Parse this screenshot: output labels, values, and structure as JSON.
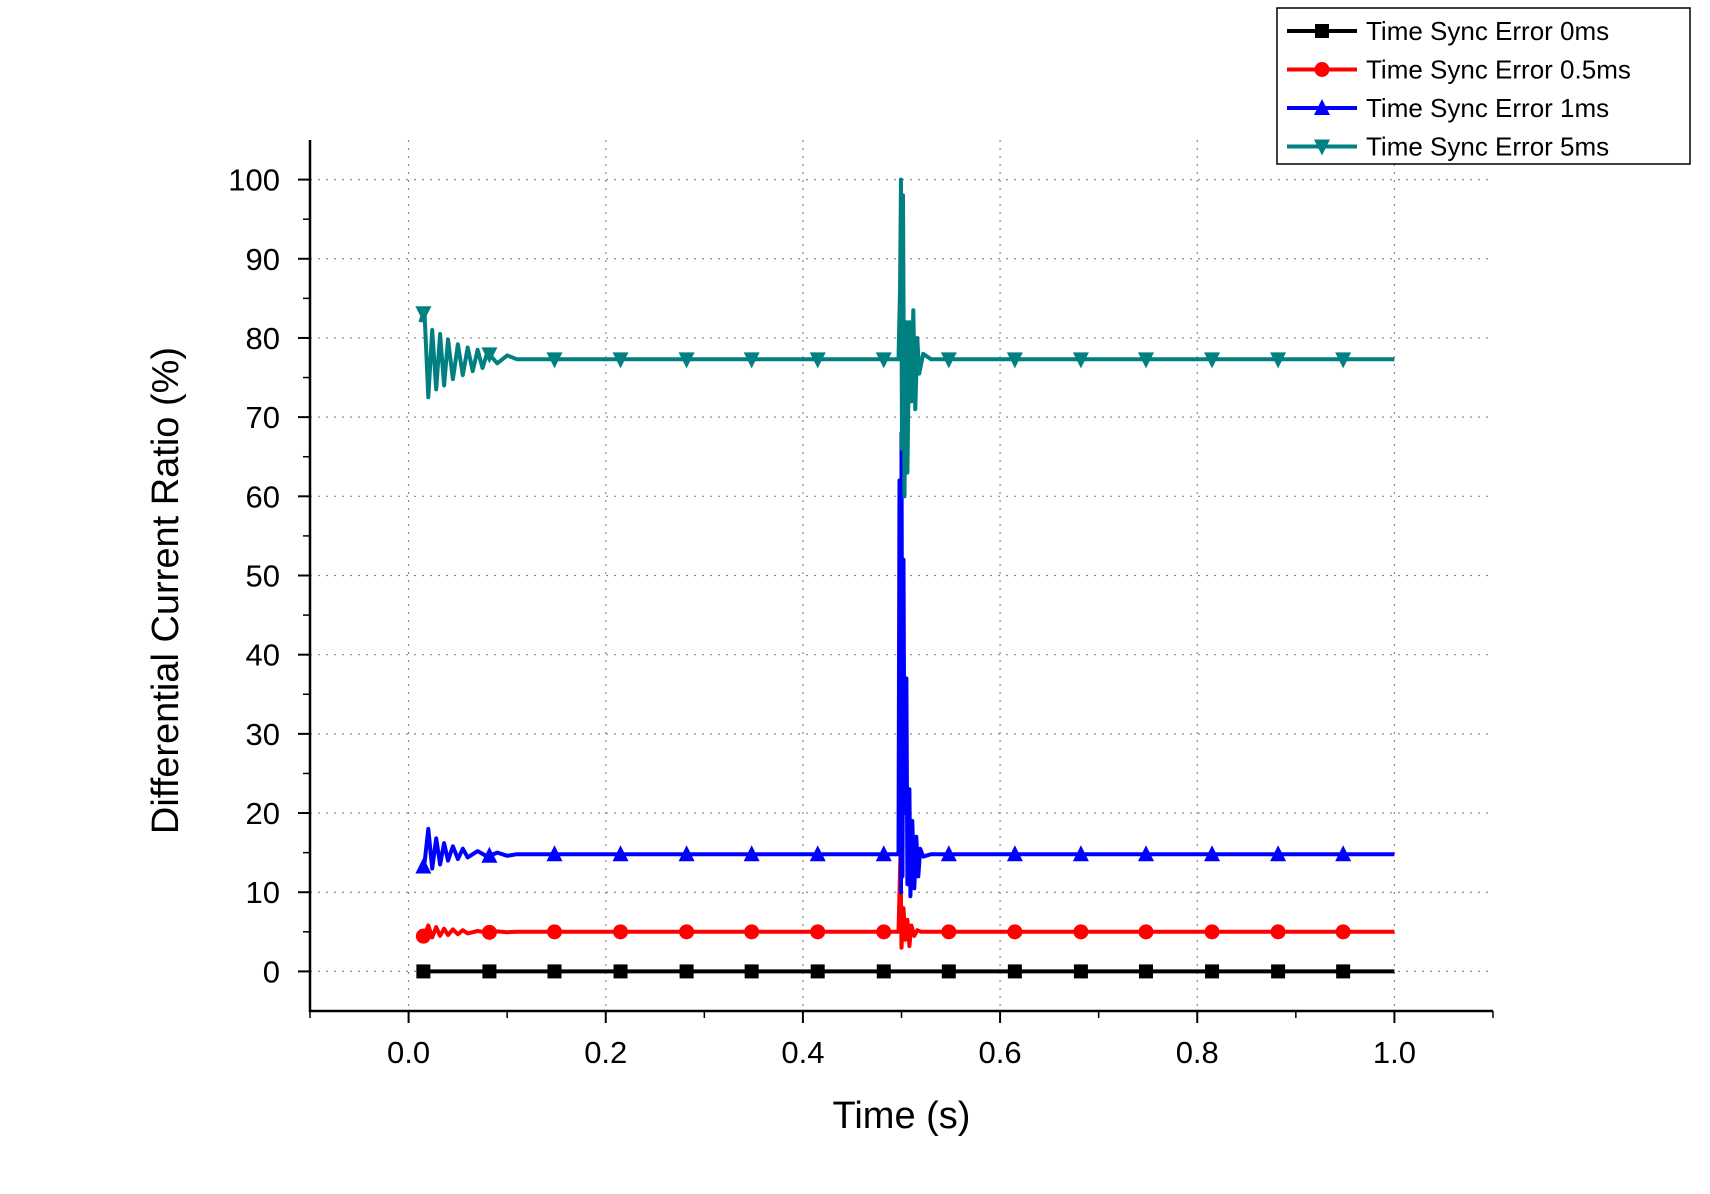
{
  "chart_data": {
    "type": "line",
    "xlabel": "Time (s)",
    "ylabel": "Differential Current Ratio (%)",
    "xlim": [
      -0.1,
      1.1
    ],
    "ylim": [
      -5,
      105
    ],
    "x_ticks": [
      0.0,
      0.2,
      0.4,
      0.6,
      0.8,
      1.0
    ],
    "x_tick_labels": [
      "0.0",
      "0.2",
      "0.4",
      "0.6",
      "0.8",
      "1.0"
    ],
    "y_ticks": [
      0,
      10,
      20,
      30,
      40,
      50,
      60,
      70,
      80,
      90,
      100
    ],
    "y_tick_labels": [
      "0",
      "10",
      "20",
      "30",
      "40",
      "50",
      "60",
      "70",
      "80",
      "90",
      "100"
    ],
    "grid": true,
    "legend_position": "top-right",
    "series": [
      {
        "name": "Time Sync Error 0ms",
        "color": "#000000",
        "marker": "square",
        "points": [
          [
            0.015,
            0.0
          ],
          [
            1.0,
            0.0
          ]
        ],
        "marker_x": [
          0.015,
          0.082,
          0.148,
          0.215,
          0.282,
          0.348,
          0.415,
          0.482,
          0.548,
          0.615,
          0.682,
          0.748,
          0.815,
          0.882,
          0.948
        ]
      },
      {
        "name": "Time Sync Error 0.5ms",
        "color": "#ff0000",
        "marker": "circle",
        "points": [
          [
            0.012,
            4.0
          ],
          [
            0.016,
            4.6
          ],
          [
            0.02,
            5.8
          ],
          [
            0.024,
            4.3
          ],
          [
            0.028,
            5.6
          ],
          [
            0.032,
            4.5
          ],
          [
            0.036,
            5.4
          ],
          [
            0.04,
            4.6
          ],
          [
            0.045,
            5.3
          ],
          [
            0.05,
            4.7
          ],
          [
            0.055,
            5.2
          ],
          [
            0.06,
            4.8
          ],
          [
            0.07,
            5.1
          ],
          [
            0.08,
            4.9
          ],
          [
            0.09,
            5.05
          ],
          [
            0.1,
            4.95
          ],
          [
            0.11,
            5.0
          ],
          [
            0.497,
            5.0
          ],
          [
            0.499,
            15.0
          ],
          [
            0.5,
            3.0
          ],
          [
            0.502,
            8.0
          ],
          [
            0.504,
            4.0
          ],
          [
            0.506,
            6.5
          ],
          [
            0.508,
            3.2
          ],
          [
            0.51,
            5.8
          ],
          [
            0.513,
            4.5
          ],
          [
            0.516,
            5.2
          ],
          [
            0.52,
            5.0
          ],
          [
            1.0,
            5.0
          ]
        ],
        "marker_x": [
          0.015,
          0.082,
          0.148,
          0.215,
          0.282,
          0.348,
          0.415,
          0.482,
          0.548,
          0.615,
          0.682,
          0.748,
          0.815,
          0.882,
          0.948
        ]
      },
      {
        "name": "Time Sync Error 1ms",
        "color": "#0000ff",
        "marker": "triangle-up",
        "points": [
          [
            0.012,
            12.5
          ],
          [
            0.016,
            13.5
          ],
          [
            0.02,
            18.0
          ],
          [
            0.024,
            13.0
          ],
          [
            0.028,
            16.8
          ],
          [
            0.032,
            13.5
          ],
          [
            0.036,
            16.2
          ],
          [
            0.04,
            14.0
          ],
          [
            0.045,
            15.8
          ],
          [
            0.05,
            14.2
          ],
          [
            0.055,
            15.5
          ],
          [
            0.06,
            14.4
          ],
          [
            0.07,
            15.2
          ],
          [
            0.08,
            14.5
          ],
          [
            0.09,
            15.0
          ],
          [
            0.1,
            14.6
          ],
          [
            0.11,
            14.8
          ],
          [
            0.497,
            14.8
          ],
          [
            0.498,
            62.0
          ],
          [
            0.4995,
            10.0
          ],
          [
            0.5,
            68.0
          ],
          [
            0.501,
            12.0
          ],
          [
            0.502,
            52.0
          ],
          [
            0.503,
            20.0
          ],
          [
            0.505,
            37.0
          ],
          [
            0.506,
            11.0
          ],
          [
            0.508,
            23.0
          ],
          [
            0.509,
            9.5
          ],
          [
            0.511,
            19.0
          ],
          [
            0.513,
            10.5
          ],
          [
            0.515,
            17.0
          ],
          [
            0.517,
            12.0
          ],
          [
            0.519,
            15.5
          ],
          [
            0.522,
            14.5
          ],
          [
            0.53,
            14.8
          ],
          [
            1.0,
            14.8
          ]
        ],
        "marker_x": [
          0.015,
          0.082,
          0.148,
          0.215,
          0.282,
          0.348,
          0.415,
          0.482,
          0.548,
          0.615,
          0.682,
          0.748,
          0.815,
          0.882,
          0.948
        ]
      },
      {
        "name": "Time Sync Error 5ms",
        "color": "#008080",
        "marker": "triangle-down",
        "points": [
          [
            0.012,
            82.0
          ],
          [
            0.016,
            83.5
          ],
          [
            0.02,
            72.5
          ],
          [
            0.024,
            81.0
          ],
          [
            0.028,
            73.5
          ],
          [
            0.032,
            80.5
          ],
          [
            0.036,
            74.0
          ],
          [
            0.04,
            79.8
          ],
          [
            0.045,
            74.8
          ],
          [
            0.05,
            79.2
          ],
          [
            0.055,
            75.3
          ],
          [
            0.06,
            78.8
          ],
          [
            0.065,
            75.8
          ],
          [
            0.07,
            78.5
          ],
          [
            0.075,
            76.2
          ],
          [
            0.08,
            78.2
          ],
          [
            0.09,
            76.8
          ],
          [
            0.1,
            77.8
          ],
          [
            0.11,
            77.3
          ],
          [
            0.497,
            77.3
          ],
          [
            0.4985,
            86.0
          ],
          [
            0.4995,
            100.0
          ],
          [
            0.5005,
            66.0
          ],
          [
            0.5015,
            98.0
          ],
          [
            0.503,
            60.0
          ],
          [
            0.5045,
            82.0
          ],
          [
            0.506,
            63.0
          ],
          [
            0.508,
            82.0
          ],
          [
            0.51,
            72.0
          ],
          [
            0.512,
            83.5
          ],
          [
            0.514,
            71.0
          ],
          [
            0.516,
            80.0
          ],
          [
            0.518,
            75.5
          ],
          [
            0.522,
            78.0
          ],
          [
            0.53,
            77.3
          ],
          [
            1.0,
            77.3
          ]
        ],
        "marker_x": [
          0.015,
          0.082,
          0.148,
          0.215,
          0.282,
          0.348,
          0.415,
          0.482,
          0.548,
          0.615,
          0.682,
          0.748,
          0.815,
          0.882,
          0.948
        ]
      }
    ]
  }
}
